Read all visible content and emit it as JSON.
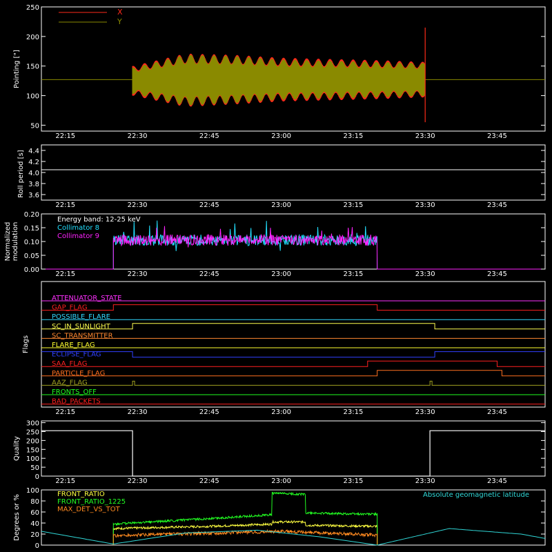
{
  "colors": {
    "background": "#000000",
    "axes": "#ffffff",
    "x_series": "#ff2a1a",
    "y_series": "#8a8a00",
    "collimator8": "#22e0ff",
    "collimator9": "#ff22ff",
    "front_ratio": "#ffff40",
    "front_ratio_1225": "#22ff22",
    "max_det_vs_tot": "#ff8a20",
    "geomag": "#30d8d8"
  },
  "time_ticks": [
    "22:15",
    "22:30",
    "22:45",
    "23:00",
    "23:15",
    "23:30",
    "23:45"
  ],
  "chart_data": [
    {
      "id": "pointing",
      "type": "line",
      "ylabel": "Pointing [\"]",
      "ylim": [
        40,
        250
      ],
      "yticks": [
        "50",
        "100",
        "150",
        "200",
        "250"
      ],
      "legend_placement": "top-left",
      "series": [
        {
          "name": "X",
          "color_key": "x_series",
          "x": [
            "22:29",
            "22:40",
            "22:50",
            "23:00",
            "23:10",
            "23:20",
            "23:30"
          ],
          "center": [
            125,
            126,
            127,
            127,
            127,
            127,
            127
          ],
          "amplitude": [
            25,
            45,
            42,
            37,
            35,
            33,
            30
          ]
        },
        {
          "name": "Y",
          "color_key": "y_series",
          "x": [
            "22:29",
            "22:40",
            "22:50",
            "23:00",
            "23:10",
            "23:20",
            "23:30"
          ],
          "center": [
            125,
            126,
            127,
            127,
            127,
            127,
            127
          ],
          "amplitude": [
            22,
            43,
            40,
            34,
            32,
            30,
            28
          ]
        }
      ],
      "baseline": 127,
      "active_range": [
        "22:29",
        "23:30"
      ]
    },
    {
      "id": "roll",
      "type": "line",
      "ylabel": "Roll period [s]",
      "ylim": [
        3.5,
        4.5
      ],
      "yticks": [
        "3.6",
        "3.8",
        "4.0",
        "4.2",
        "4.4"
      ],
      "series": [
        {
          "x": [
            "22:10",
            "23:55"
          ],
          "values": [
            4.05,
            4.05
          ]
        }
      ]
    },
    {
      "id": "modulation",
      "type": "line",
      "ylabel_lines": [
        "Normalized",
        "modulation"
      ],
      "ylim": [
        0,
        0.2
      ],
      "yticks": [
        "0.00",
        "0.05",
        "0.10",
        "0.15",
        "0.20"
      ],
      "energy_band_label": "Energy band: 12-25 keV",
      "series": [
        {
          "name": "Collimator 8",
          "color_key": "collimator8",
          "active_range": [
            "22:25",
            "23:20"
          ],
          "mean": 0.105
        },
        {
          "name": "Collimator 9",
          "color_key": "collimator9",
          "active_range": [
            "22:25",
            "23:20"
          ],
          "mean": 0.105
        }
      ]
    },
    {
      "id": "flags",
      "type": "line",
      "ylabel": "Flags",
      "series": [
        {
          "name": "ATTENUATOR_STATE",
          "color": "#ff30ff",
          "level": [],
          "changes": []
        },
        {
          "name": "GAP_FLAG",
          "color": "#ff2020",
          "start_high": false,
          "changes": [
            "22:25",
            "23:20"
          ]
        },
        {
          "name": "POSSIBLE_FLARE",
          "color": "#30d8ff",
          "start_high": false,
          "changes": []
        },
        {
          "name": "SC_IN_SUNLIGHT",
          "color": "#ffff50",
          "start_high": false,
          "changes": [
            "22:29",
            "23:32"
          ]
        },
        {
          "name": "SC_TRANSMITTER",
          "color": "#ff8830",
          "start_high": false,
          "changes": []
        },
        {
          "name": "FLARE_FLAG",
          "color": "#ffff30",
          "start_high": false,
          "changes": []
        },
        {
          "name": "ECLIPSE_FLAG",
          "color": "#3040ff",
          "start_high": true,
          "changes": [
            "22:29",
            "23:32"
          ]
        },
        {
          "name": "SAA_FLAG",
          "color": "#ff2020",
          "start_high": false,
          "changes": [
            "23:18",
            "23:45"
          ]
        },
        {
          "name": "PARTICLE_FLAG",
          "color": "#ff7020",
          "start_high": false,
          "changes": [
            "23:20",
            "23:46"
          ]
        },
        {
          "name": "AAZ_FLAG",
          "color": "#a0a020",
          "start_high": false,
          "pulses": [
            "22:29",
            "23:31"
          ]
        },
        {
          "name": "FRONTS_OFF",
          "color": "#20ff20",
          "start_high": false,
          "changes": []
        },
        {
          "name": "BAD_PACKETS",
          "color": "#ff2020",
          "start_high": false,
          "changes": []
        }
      ]
    },
    {
      "id": "quality",
      "type": "line",
      "ylabel": "Quality",
      "ylim": [
        0,
        310
      ],
      "yticks": [
        "0",
        "50",
        "100",
        "150",
        "200",
        "250",
        "300"
      ],
      "series": [
        {
          "x": [
            "22:10",
            "22:29",
            "22:29",
            "23:31",
            "23:31",
            "23:55"
          ],
          "values": [
            255,
            255,
            0,
            0,
            255,
            255
          ]
        }
      ]
    },
    {
      "id": "ratios",
      "type": "line",
      "ylabel": "Degrees or %",
      "ylim": [
        0,
        100
      ],
      "yticks": [
        "0",
        "20",
        "40",
        "60",
        "80",
        "100"
      ],
      "right_label": "Absolute geomagnetic latitude",
      "series": [
        {
          "name": "FRONT_RATIO",
          "color_key": "front_ratio",
          "x": [
            "22:25",
            "22:45",
            "22:58",
            "22:58",
            "23:05",
            "23:05",
            "23:20"
          ],
          "values": [
            30,
            34,
            38,
            42,
            42,
            36,
            34
          ],
          "active_range": [
            "22:25",
            "23:20"
          ]
        },
        {
          "name": "FRONT_RATIO_1225",
          "color_key": "front_ratio_1225",
          "x": [
            "22:25",
            "22:45",
            "22:58",
            "22:58",
            "23:05",
            "23:05",
            "23:20"
          ],
          "values": [
            38,
            48,
            55,
            94,
            92,
            58,
            56
          ],
          "active_range": [
            "22:25",
            "23:20"
          ]
        },
        {
          "name": "MAX_DET_VS_TOT",
          "color_key": "max_det_vs_tot",
          "x": [
            "22:25",
            "23:00",
            "23:20"
          ],
          "values": [
            17,
            25,
            18
          ],
          "active_range": [
            "22:25",
            "23:20"
          ]
        },
        {
          "name": "Absolute geomagnetic latitude",
          "color_key": "geomag",
          "x": [
            "22:10",
            "22:25",
            "22:40",
            "22:55",
            "23:08",
            "23:20",
            "23:35",
            "23:50",
            "23:55"
          ],
          "values": [
            25,
            2,
            22,
            27,
            15,
            0,
            30,
            20,
            12
          ]
        }
      ]
    }
  ]
}
